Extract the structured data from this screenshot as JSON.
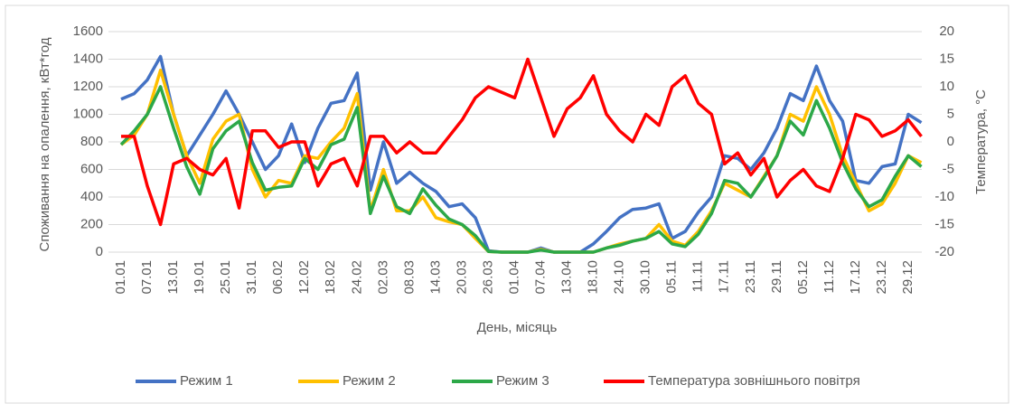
{
  "chart_data": {
    "type": "line",
    "x_label": "День, місяць",
    "y_label": "Споживання на опалення, кВт*год",
    "y2_label": "Температура, °С",
    "categories": [
      "01.01",
      null,
      "07.01",
      null,
      "13.01",
      null,
      "19.01",
      null,
      "25.01",
      null,
      "31.01",
      null,
      "06.02",
      null,
      "12.02",
      null,
      "18.02",
      null,
      "24.02",
      null,
      "02.03",
      null,
      "08.03",
      null,
      "14.03",
      null,
      "20.03",
      null,
      "26.03",
      null,
      "01.04",
      null,
      "07.04",
      null,
      "13.04",
      null,
      "18.10",
      null,
      "24.10",
      null,
      "30.10",
      null,
      "05.11",
      null,
      "11.11",
      null,
      "17.11",
      null,
      "23.11",
      null,
      "29.11",
      null,
      "05.12",
      null,
      "11.12",
      null,
      "17.12",
      null,
      "23.12",
      null,
      "29.12",
      null
    ],
    "series": [
      {
        "name": "Режим 1",
        "color": "#4472c4",
        "values": [
          1110,
          1150,
          1250,
          1420,
          1000,
          700,
          850,
          1000,
          1170,
          1000,
          800,
          600,
          700,
          930,
          650,
          900,
          1080,
          1100,
          1300,
          450,
          800,
          500,
          580,
          500,
          440,
          330,
          350,
          250,
          10,
          0,
          0,
          0,
          30,
          0,
          0,
          0,
          60,
          150,
          250,
          310,
          320,
          350,
          100,
          150,
          290,
          400,
          700,
          680,
          600,
          720,
          900,
          1150,
          1100,
          1350,
          1100,
          950,
          520,
          500,
          620,
          640,
          1000,
          940
        ]
      },
      {
        "name": "Режим 2",
        "color": "#ffc000",
        "values": [
          780,
          850,
          1000,
          1320,
          1000,
          700,
          500,
          820,
          950,
          1000,
          600,
          400,
          520,
          500,
          700,
          680,
          800,
          900,
          1150,
          300,
          600,
          300,
          300,
          400,
          250,
          220,
          200,
          100,
          5,
          0,
          0,
          0,
          20,
          0,
          0,
          0,
          0,
          30,
          60,
          80,
          100,
          200,
          80,
          50,
          150,
          300,
          500,
          450,
          400,
          550,
          700,
          1000,
          950,
          1200,
          1000,
          700,
          500,
          300,
          350,
          500,
          700,
          650
        ]
      },
      {
        "name": "Режим 3",
        "color": "#2ca848",
        "values": [
          780,
          880,
          1000,
          1200,
          900,
          620,
          420,
          750,
          880,
          950,
          650,
          450,
          470,
          480,
          680,
          600,
          780,
          820,
          1050,
          280,
          550,
          330,
          280,
          460,
          340,
          240,
          200,
          120,
          5,
          0,
          0,
          0,
          15,
          0,
          0,
          0,
          0,
          30,
          50,
          80,
          100,
          150,
          60,
          40,
          130,
          280,
          520,
          500,
          400,
          540,
          700,
          950,
          850,
          1100,
          900,
          650,
          460,
          330,
          380,
          550,
          700,
          620
        ]
      },
      {
        "name": "Температура зовнішнього повітря",
        "color": "#ff0000",
        "axis": "y2",
        "values": [
          1,
          1,
          -8,
          -15,
          -4,
          -3,
          -5,
          -6,
          -3,
          -12,
          2,
          2,
          -1,
          0,
          0,
          -8,
          -4,
          -3,
          -8,
          1,
          1,
          -2,
          0,
          -2,
          -2,
          1,
          4,
          8,
          10,
          9,
          8,
          15,
          8,
          1,
          6,
          8,
          12,
          5,
          2,
          0,
          5,
          3,
          10,
          12,
          7,
          5,
          -4,
          -2,
          -6,
          -3,
          -10,
          -7,
          -5,
          -8,
          -9,
          -3,
          5,
          4,
          1,
          2,
          4,
          1
        ]
      }
    ],
    "ylim": [
      0,
      1600
    ],
    "yticks": [
      0,
      200,
      400,
      600,
      800,
      1000,
      1200,
      1400,
      1600
    ],
    "y2lim": [
      -20,
      20
    ],
    "y2ticks": [
      -20,
      -15,
      -10,
      -5,
      0,
      5,
      10,
      15,
      20
    ],
    "grid": true,
    "legend": "bottom"
  }
}
